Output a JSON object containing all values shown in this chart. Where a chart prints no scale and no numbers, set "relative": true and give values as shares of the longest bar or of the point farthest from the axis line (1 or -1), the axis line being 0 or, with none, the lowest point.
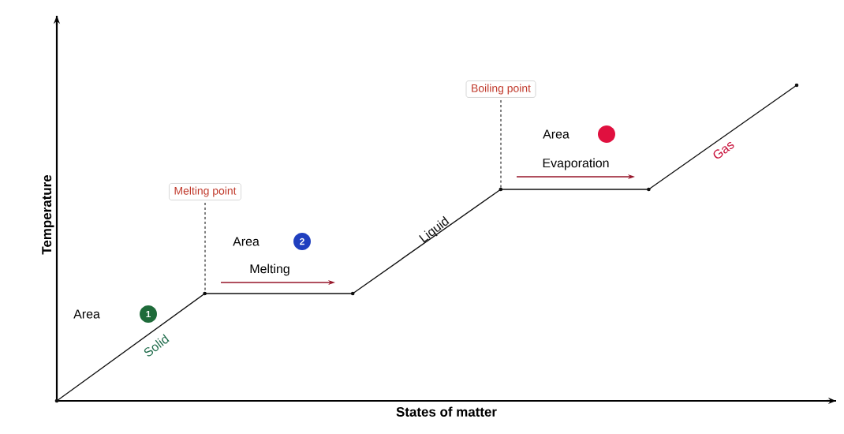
{
  "chart_data": {
    "type": "line",
    "relative": true,
    "xlabel": "States of matter",
    "ylabel": "Temperature",
    "categories": [
      null,
      null,
      null,
      null,
      null,
      null
    ],
    "series": [
      {
        "color": "#111111",
        "values": [
          0,
          0.34,
          0.34,
          0.67,
          0.67,
          1
        ]
      }
    ],
    "marker": "circle",
    "line_style": "solid",
    "annotations": [
      "Melting point",
      "Boiling point",
      "Area",
      "1",
      "Area",
      "2",
      "Melting",
      "Area",
      "Evaporation",
      "Solid",
      "Liquid",
      "Gas"
    ]
  }
}
